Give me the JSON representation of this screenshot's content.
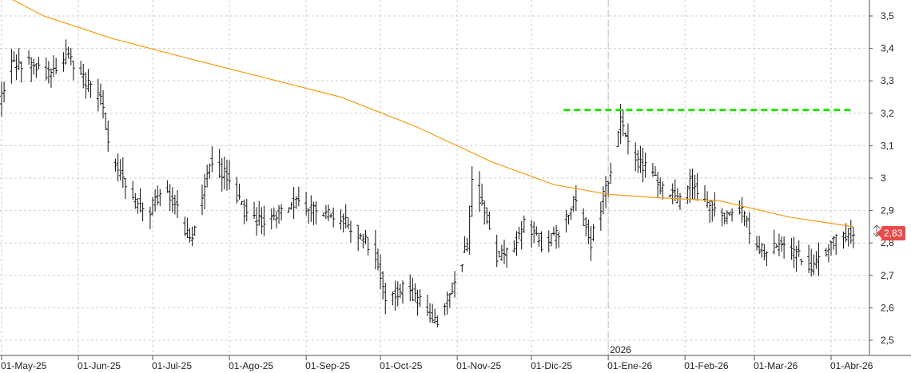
{
  "chart_data": {
    "type": "ohlc",
    "title": "",
    "xlabel": "",
    "ylabel": "",
    "ylim": [
      2.45,
      3.55
    ],
    "grid": true,
    "y_axis_position": "right",
    "y_ticks": [
      "3,5",
      "3,4",
      "3,3",
      "3,2",
      "3,1",
      "3",
      "2,9",
      "2,8",
      "2,7",
      "2,6",
      "2,5"
    ],
    "y_tick_values": [
      3.5,
      3.4,
      3.3,
      3.2,
      3.1,
      3.0,
      2.9,
      2.8,
      2.7,
      2.6,
      2.5
    ],
    "x_ticks": [
      "01-May-25",
      "01-Jun-25",
      "01-Jul-25",
      "01-Ago-25",
      "01-Sep-25",
      "01-Oct-25",
      "01-Nov-25",
      "01-Dic-25",
      "01-Ene-26",
      "01-Feb-26",
      "01-Mar-26",
      "01-Abr-26"
    ],
    "x_tick_dates": [
      "2025-05-01",
      "2025-06-01",
      "2025-07-01",
      "2025-08-01",
      "2025-09-01",
      "2025-10-01",
      "2025-11-01",
      "2025-12-01",
      "2026-01-01",
      "2026-02-01",
      "2026-03-01",
      "2026-04-01"
    ],
    "year_marker": {
      "label": "2026",
      "date": "2026-01-01"
    },
    "last_price": {
      "label": "2,83",
      "value": 2.83,
      "color": "#e84a4a"
    },
    "resistance": {
      "value": 3.21,
      "from": "2025-12-14",
      "to": "2026-04-10",
      "color": "#22dd00"
    },
    "bar_color": "#111111",
    "ma_color": "#f39c12",
    "grid_color": "#cfcfcf",
    "price_anchors": [
      [
        "2025-04-28",
        3.2
      ],
      [
        "2025-05-05",
        3.35
      ],
      [
        "2025-05-12",
        3.36
      ],
      [
        "2025-05-19",
        3.32
      ],
      [
        "2025-05-27",
        3.38
      ],
      [
        "2025-06-03",
        3.3
      ],
      [
        "2025-06-10",
        3.24
      ],
      [
        "2025-06-15",
        3.05
      ],
      [
        "2025-06-20",
        2.98
      ],
      [
        "2025-06-28",
        2.88
      ],
      [
        "2025-07-05",
        2.97
      ],
      [
        "2025-07-10",
        2.92
      ],
      [
        "2025-07-16",
        2.8
      ],
      [
        "2025-07-24",
        3.05
      ],
      [
        "2025-08-01",
        3.0
      ],
      [
        "2025-08-07",
        2.9
      ],
      [
        "2025-08-14",
        2.86
      ],
      [
        "2025-08-21",
        2.9
      ],
      [
        "2025-08-28",
        2.93
      ],
      [
        "2025-09-05",
        2.9
      ],
      [
        "2025-09-13",
        2.88
      ],
      [
        "2025-09-21",
        2.84
      ],
      [
        "2025-09-28",
        2.78
      ],
      [
        "2025-10-03",
        2.63
      ],
      [
        "2025-10-10",
        2.66
      ],
      [
        "2025-10-18",
        2.62
      ],
      [
        "2025-10-24",
        2.55
      ],
      [
        "2025-10-31",
        2.68
      ],
      [
        "2025-11-05",
        2.8
      ],
      [
        "2025-11-07",
        3.0
      ],
      [
        "2025-11-12",
        2.9
      ],
      [
        "2025-11-17",
        2.76
      ],
      [
        "2025-11-24",
        2.8
      ],
      [
        "2025-11-29",
        2.87
      ],
      [
        "2025-12-05",
        2.8
      ],
      [
        "2025-12-11",
        2.82
      ],
      [
        "2025-12-18",
        2.93
      ],
      [
        "2025-12-25",
        2.8
      ],
      [
        "2026-01-01",
        3.0
      ],
      [
        "2026-01-06",
        3.17
      ],
      [
        "2026-01-10",
        3.08
      ],
      [
        "2026-01-17",
        3.02
      ],
      [
        "2026-01-24",
        2.96
      ],
      [
        "2026-01-31",
        2.92
      ],
      [
        "2026-02-03",
        2.99
      ],
      [
        "2026-02-10",
        2.92
      ],
      [
        "2026-02-17",
        2.88
      ],
      [
        "2026-02-24",
        2.9
      ],
      [
        "2026-03-01",
        2.8
      ],
      [
        "2026-03-06",
        2.76
      ],
      [
        "2026-03-12",
        2.8
      ],
      [
        "2026-03-19",
        2.76
      ],
      [
        "2026-03-25",
        2.72
      ],
      [
        "2026-04-01",
        2.8
      ],
      [
        "2026-04-06",
        2.82
      ],
      [
        "2026-04-10",
        2.83
      ]
    ],
    "moving_average": [
      [
        "2025-04-28",
        3.58
      ],
      [
        "2025-05-18",
        3.5
      ],
      [
        "2025-06-15",
        3.43
      ],
      [
        "2025-07-15",
        3.37
      ],
      [
        "2025-08-15",
        3.31
      ],
      [
        "2025-09-15",
        3.25
      ],
      [
        "2025-10-15",
        3.16
      ],
      [
        "2025-11-15",
        3.05
      ],
      [
        "2025-12-10",
        2.98
      ],
      [
        "2026-01-01",
        2.95
      ],
      [
        "2026-01-20",
        2.94
      ],
      [
        "2026-02-15",
        2.93
      ],
      [
        "2026-03-15",
        2.88
      ],
      [
        "2026-04-10",
        2.85
      ]
    ]
  }
}
